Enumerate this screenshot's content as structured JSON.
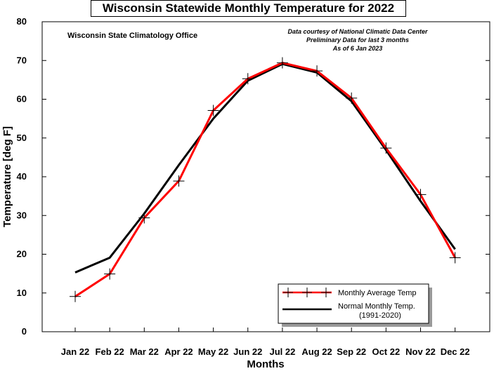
{
  "chart_data": {
    "type": "line",
    "title": "Wisconsin Statewide Monthly Temperature for 2022",
    "xlabel": "Months",
    "ylabel": "Temperature [deg F]",
    "ylim": [
      0,
      80
    ],
    "yticks": [
      0,
      10,
      20,
      30,
      40,
      50,
      60,
      70,
      80
    ],
    "categories": [
      "Jan 22",
      "Feb 22",
      "Mar 22",
      "Apr 22",
      "May 22",
      "Jun 22",
      "Jul 22",
      "Aug 22",
      "Sep 22",
      "Oct 22",
      "Nov 22",
      "Dec 22"
    ],
    "series": [
      {
        "name": "Monthly Average Temp",
        "color": "#ff0000",
        "marker": "plus",
        "values": [
          9.1,
          14.9,
          29.4,
          38.9,
          57.1,
          65.3,
          69.4,
          67.3,
          60.3,
          47.4,
          35.4,
          19.1
        ]
      },
      {
        "name": "Normal Monthly Temp. (1991-2020)",
        "legend_lines": [
          "Normal Monthly Temp.",
          "(1991-2020)"
        ],
        "color": "#000000",
        "marker": "none",
        "values": [
          15.3,
          19.1,
          30.5,
          43.0,
          55.0,
          64.8,
          69.1,
          66.9,
          59.5,
          46.9,
          33.7,
          21.3
        ]
      }
    ],
    "annotations": {
      "left": "Wisconsin State Climatology Office",
      "right": [
        "Data courtesy of National Climatic Data Center",
        "Preliminary Data for last 3 months",
        "As of 6 Jan  2023"
      ]
    },
    "legend_position": "bottom-right",
    "grid": false
  }
}
